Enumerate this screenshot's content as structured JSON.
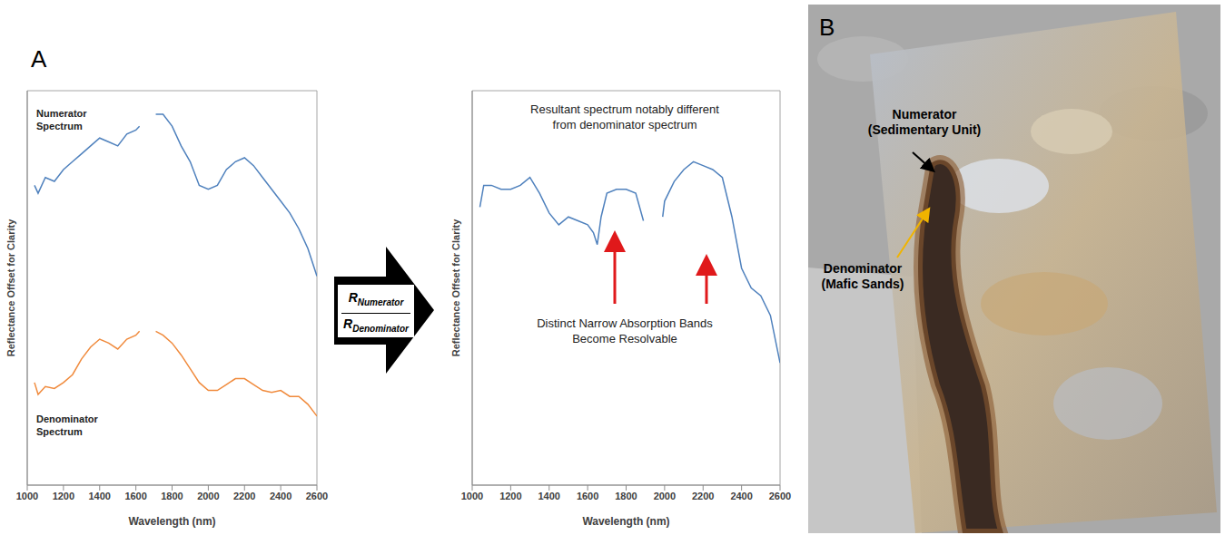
{
  "chart_data": [
    {
      "type": "line",
      "xlabel": "Wavelength (nm)",
      "ylabel": "Reflectance Offset for Clarity",
      "x": [
        1040,
        1060,
        1100,
        1150,
        1200,
        1250,
        1300,
        1350,
        1400,
        1450,
        1500,
        1550,
        1600,
        1620,
        1660,
        1710,
        1750,
        1800,
        1850,
        1900,
        1950,
        2000,
        2050,
        2100,
        2150,
        2200,
        2250,
        2300,
        2350,
        2400,
        2450,
        2500,
        2550,
        2600
      ],
      "series": [
        {
          "name": "Numerator Spectrum",
          "color": "#4f81bd",
          "values": [
            76,
            74,
            78,
            77,
            80,
            82,
            84,
            86,
            88,
            87,
            86,
            89,
            90,
            91,
            null,
            94,
            94,
            91,
            86,
            82,
            76,
            75,
            76,
            80,
            82,
            83,
            81,
            78,
            75,
            72,
            69,
            65,
            60,
            53
          ]
        },
        {
          "name": "Denominator Spectrum",
          "color": "#f08a3c",
          "values": [
            26,
            23,
            25,
            24.5,
            26,
            28,
            32,
            35,
            37,
            36,
            34.5,
            37,
            38,
            39,
            null,
            39,
            38,
            36,
            33,
            29.5,
            26,
            24,
            24,
            25.5,
            27,
            27,
            25.5,
            24,
            23.5,
            24,
            22.5,
            22.5,
            20.5,
            17.5
          ]
        }
      ],
      "xlim": [
        1000,
        2600
      ],
      "xticks": [
        1000,
        1200,
        1400,
        1600,
        1800,
        2000,
        2200,
        2400,
        2600
      ],
      "ylim": [
        0,
        100
      ],
      "tick_labels": "x"
    },
    {
      "type": "line",
      "xlabel": "Wavelength (nm)",
      "ylabel": "Reflectance Offset for Clarity",
      "x": [
        1040,
        1060,
        1100,
        1150,
        1200,
        1250,
        1300,
        1350,
        1400,
        1450,
        1500,
        1550,
        1600,
        1630,
        1650,
        1670,
        1700,
        1750,
        1800,
        1850,
        1890,
        1940,
        1990,
        2000,
        2050,
        2100,
        2150,
        2200,
        2250,
        2300,
        2350,
        2400,
        2450,
        2500,
        2550,
        2600
      ],
      "series": [
        {
          "color": "#4f81bd",
          "values": [
            70.5,
            76,
            76,
            75,
            75,
            76,
            78,
            74,
            69,
            66,
            68,
            67,
            66,
            64,
            61,
            68,
            74,
            75,
            75,
            74,
            67,
            null,
            68,
            72,
            77,
            80,
            82,
            81,
            80,
            78,
            68,
            55,
            50,
            48,
            43,
            31
          ]
        }
      ],
      "xlim": [
        1000,
        2600
      ],
      "xticks": [
        1000,
        1200,
        1400,
        1600,
        1800,
        2000,
        2200,
        2400,
        2600
      ],
      "ylim": [
        0,
        100
      ],
      "tick_labels": "x",
      "annotations": [
        {
          "lines": [
            "Resultant spectrum notably different",
            "from denominator spectrum"
          ]
        },
        {
          "lines": [
            "Distinct Narrow Absorption Bands",
            "Become Resolvable"
          ]
        }
      ]
    }
  ],
  "panel_labels": [
    "A",
    "B"
  ],
  "ratio_arrow": {
    "numerator_symbol": "R",
    "numerator_subscript": "Numerator",
    "denominator_symbol": "R",
    "denominator_subscript": "Denominator"
  },
  "image_labels": [
    {
      "lines": [
        "Numerator",
        "(Sedimentary Unit)"
      ]
    },
    {
      "lines": [
        "Denominator",
        "(Mafic Sands)"
      ]
    }
  ]
}
